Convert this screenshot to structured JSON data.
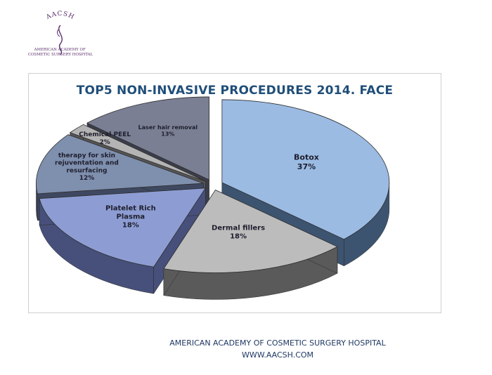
{
  "logo": {
    "text_top": "AACSH",
    "text_bottom": "AMERICAN ACADEMY OF COSMETIC SURGERY HOSPITAL"
  },
  "chart_data": {
    "type": "pie",
    "title": "TOP5 NON-INVASIVE PROCEDURES 2014. FACE",
    "slices": [
      {
        "label": "Botox",
        "value": 37,
        "pct_label": "37%",
        "color": "#9bbbe3",
        "dark": "#3d5470"
      },
      {
        "label": "Dermal fillers",
        "value": 18,
        "pct_label": "18%",
        "color": "#bcbcbc",
        "dark": "#5a5a5a"
      },
      {
        "label": "Platelet Rich Plasma",
        "value": 18,
        "pct_label": "18%",
        "color": "#8d9dd3",
        "dark": "#46507a"
      },
      {
        "label": "therapy for skin rejuventation and resurfacing",
        "value": 12,
        "pct_label": "12%",
        "color": "#7f8fae",
        "dark": "#3e4860"
      },
      {
        "label": "Chemical PEEL",
        "value": 2,
        "pct_label": "2%",
        "color": "#b4b4b4",
        "dark": "#555555"
      },
      {
        "label": "Laser hair removal",
        "value": 13,
        "pct_label": "13%",
        "color": "#7a7f93",
        "dark": "#3b3e4a"
      }
    ]
  },
  "footer": {
    "line1": "AMERICAN ACADEMY OF COSMETIC SURGERY HOSPITAL",
    "line2": "WWW.AACSH.COM"
  }
}
